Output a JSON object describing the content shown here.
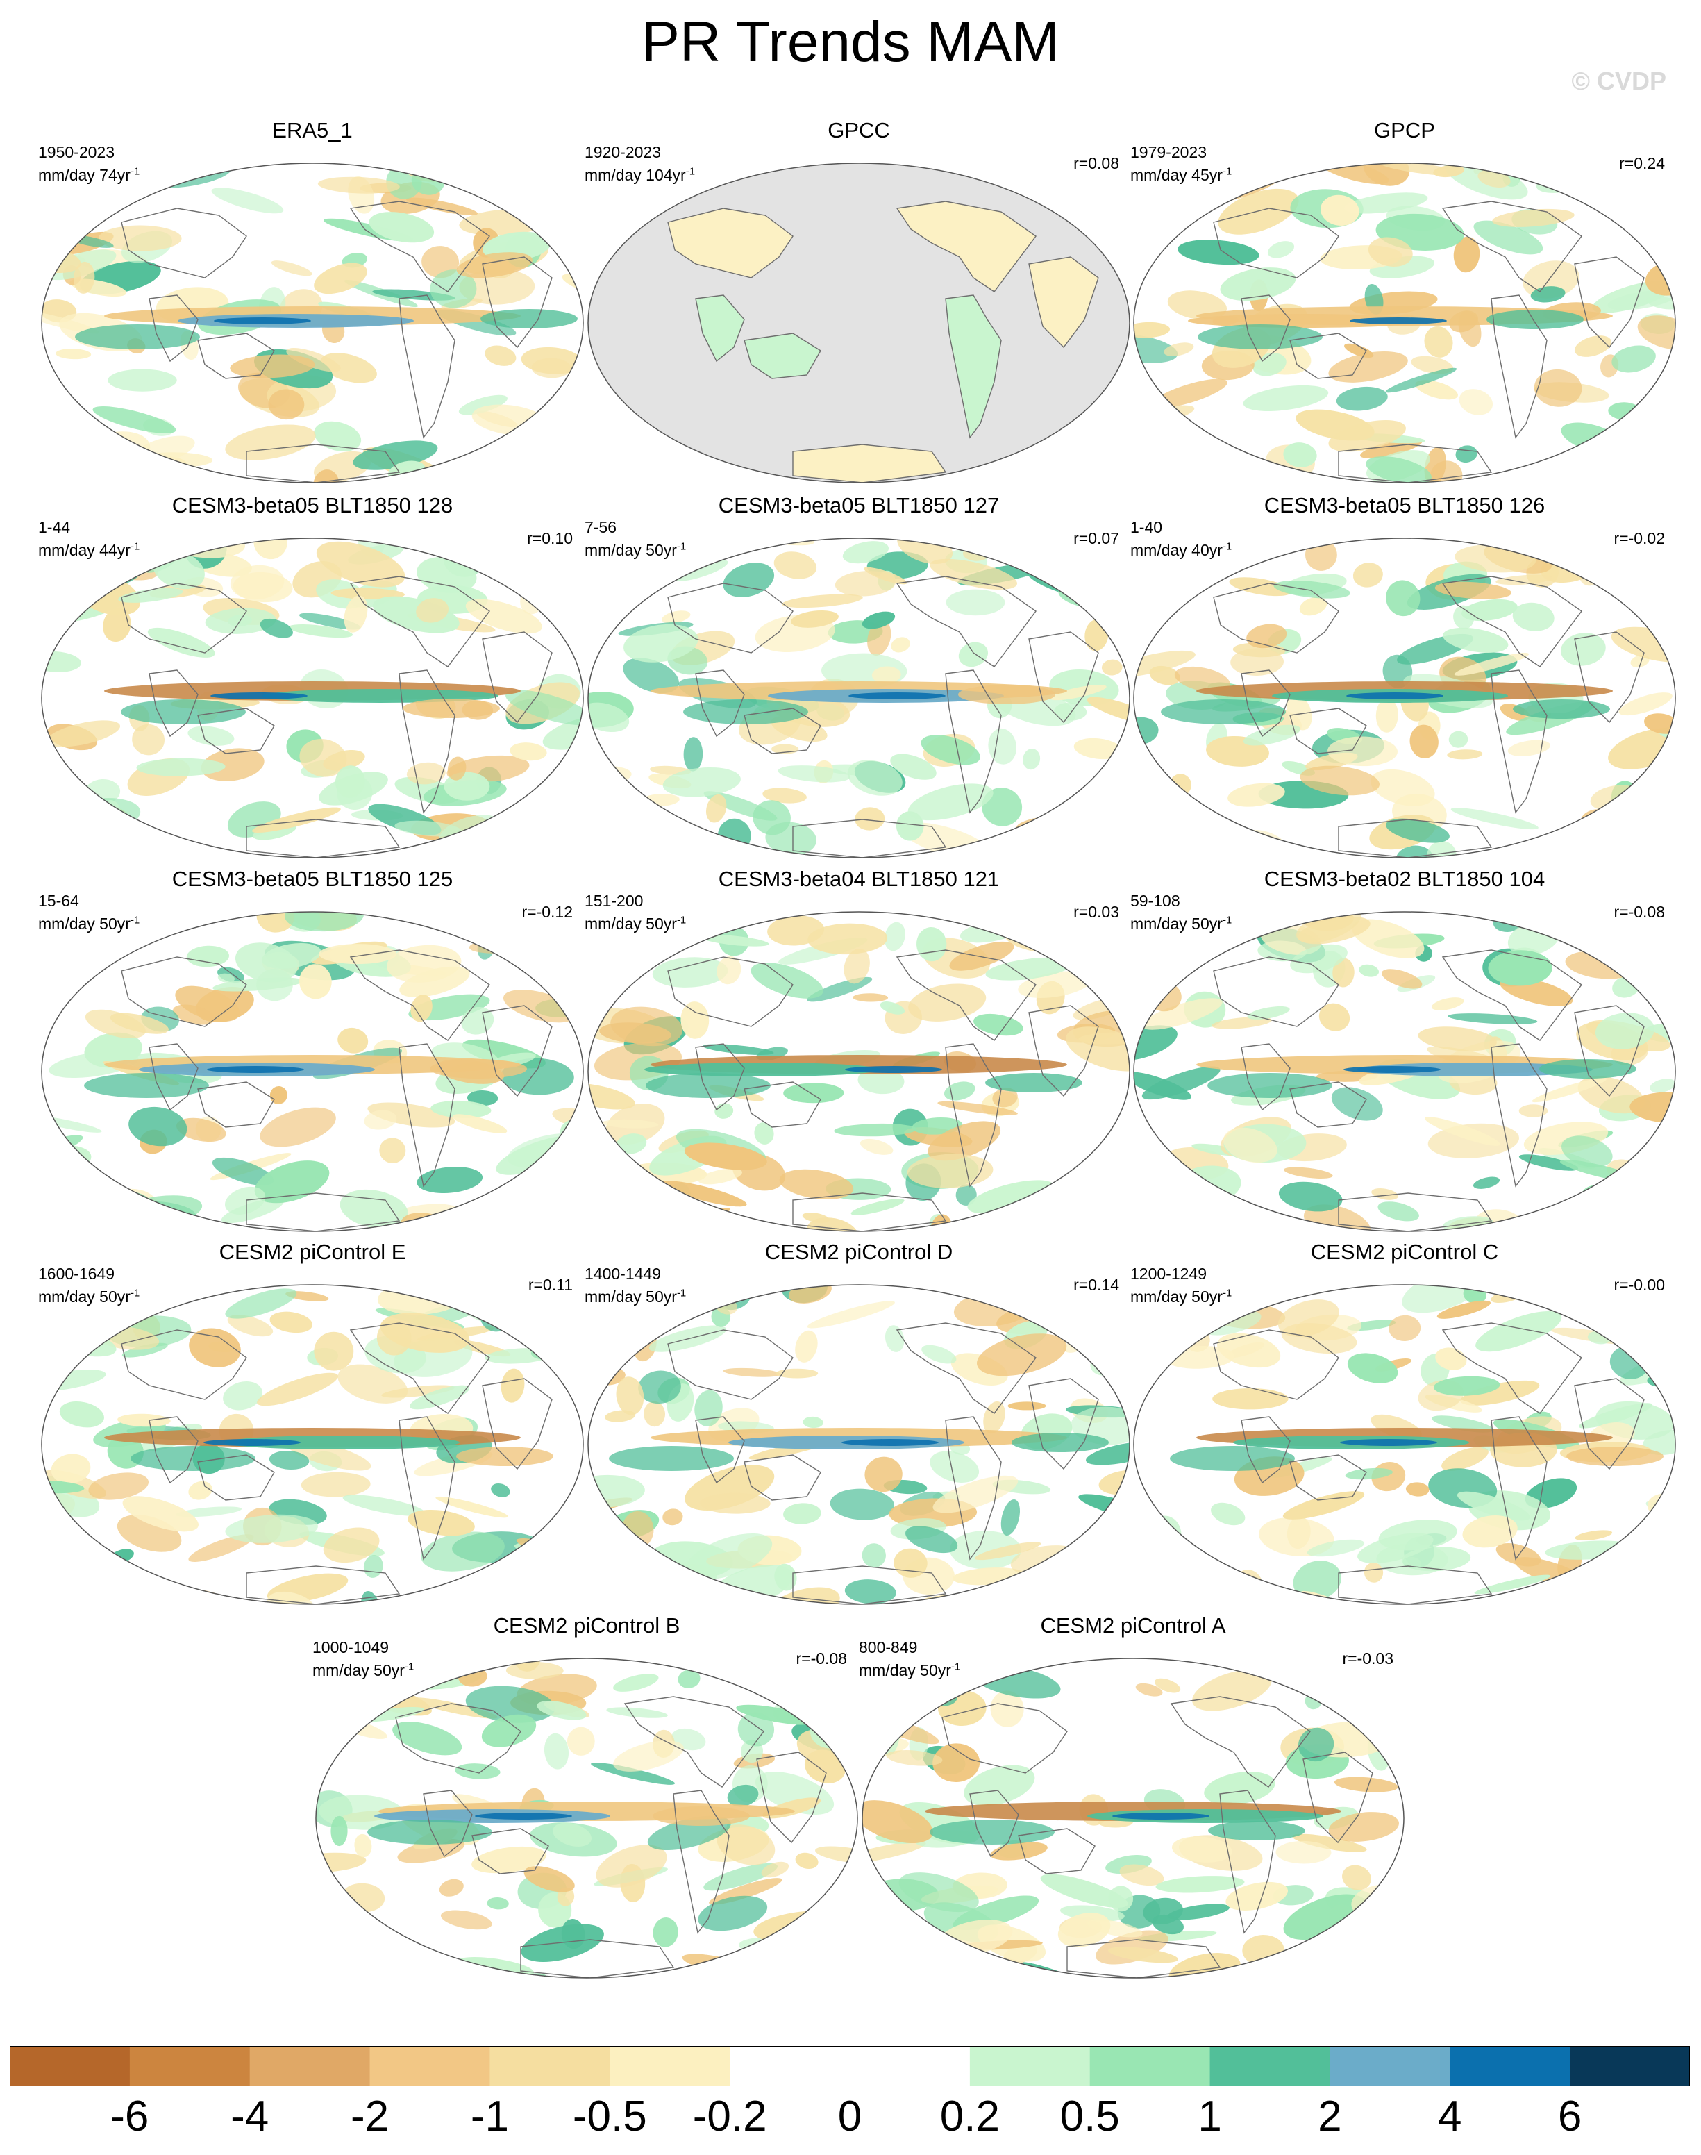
{
  "title": "PR Trends MAM",
  "watermark": "© CVDP",
  "units_base": "mm/day",
  "panels": [
    {
      "title": "ERA5_1",
      "period": "1950-2023",
      "units": "mm/day 74yr",
      "r": "",
      "style": "obs"
    },
    {
      "title": "GPCC",
      "period": "1920-2023",
      "units": "mm/day 104yr",
      "r": "r=0.08",
      "style": "gpcc"
    },
    {
      "title": "GPCP",
      "period": "1979-2023",
      "units": "mm/day 45yr",
      "r": "r=0.24",
      "style": "gpcp"
    },
    {
      "title": "CESM3-beta05 BLT1850 128",
      "period": "1-44",
      "units": "mm/day 44yr",
      "r": "r=0.10",
      "style": "model"
    },
    {
      "title": "CESM3-beta05 BLT1850 127",
      "period": "7-56",
      "units": "mm/day 50yr",
      "r": "r=0.07",
      "style": "model"
    },
    {
      "title": "CESM3-beta05 BLT1850 126",
      "period": "1-40",
      "units": "mm/day 40yr",
      "r": "r=-0.02",
      "style": "model"
    },
    {
      "title": "CESM3-beta05 BLT1850 125",
      "period": "15-64",
      "units": "mm/day 50yr",
      "r": "r=-0.12",
      "style": "model"
    },
    {
      "title": "CESM3-beta04 BLT1850 121",
      "period": "151-200",
      "units": "mm/day 50yr",
      "r": "r=0.03",
      "style": "model"
    },
    {
      "title": "CESM3-beta02 BLT1850 104",
      "period": "59-108",
      "units": "mm/day 50yr",
      "r": "r=-0.08",
      "style": "model"
    },
    {
      "title": "CESM2 piControl E",
      "period": "1600-1649",
      "units": "mm/day 50yr",
      "r": "r=0.11",
      "style": "model"
    },
    {
      "title": "CESM2 piControl D",
      "period": "1400-1449",
      "units": "mm/day 50yr",
      "r": "r=0.14",
      "style": "model"
    },
    {
      "title": "CESM2 piControl C",
      "period": "1200-1249",
      "units": "mm/day 50yr",
      "r": "r=-0.00",
      "style": "model"
    },
    {
      "title": "CESM2 piControl B",
      "period": "1000-1049",
      "units": "mm/day 50yr",
      "r": "r=-0.08",
      "style": "model"
    },
    {
      "title": "CESM2 piControl A",
      "period": "800-849",
      "units": "mm/day 50yr",
      "r": "r=-0.03",
      "style": "model"
    }
  ],
  "colorbar": {
    "labels": [
      "-6",
      "-4",
      "-2",
      "-1",
      "-0.5",
      "-0.2",
      "0",
      "0.2",
      "0.5",
      "1",
      "2",
      "4",
      "6"
    ],
    "colors": [
      "#b5672a",
      "#cc853f",
      "#e0a866",
      "#f2c785",
      "#f5dea0",
      "#fcf0c0",
      "#ffffff",
      "#ffffff",
      "#c9f5cf",
      "#99e6b3",
      "#52bf99",
      "#6bacc9",
      "#0b70ae",
      "#083858"
    ]
  }
}
